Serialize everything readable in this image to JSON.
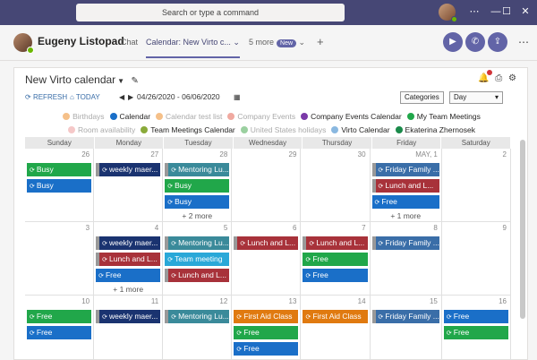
{
  "window": {
    "search_placeholder": "Search or type a command",
    "controls": [
      "⋯",
      "—",
      "☐",
      "✕"
    ]
  },
  "header": {
    "user_name": "Eugeny Listopad",
    "tabs": [
      {
        "label": "Chat"
      },
      {
        "label": "Calendar: New Virto c... ⌄"
      },
      {
        "label": "5 more"
      }
    ],
    "new_badge": "New",
    "add_tab": "+"
  },
  "calendar": {
    "title": "New Virto calendar",
    "toolbar": {
      "refresh": "REFRESH",
      "today": "TODAY",
      "date_range": "04/26/2020 - 06/06/2020",
      "categories_label": "Categories",
      "view_select": "Day"
    },
    "legend_row1": [
      {
        "label": "Birthdays",
        "color": "#f5c089",
        "faded": true
      },
      {
        "label": "Calendar",
        "color": "#1a6fc8",
        "faded": false
      },
      {
        "label": "Calendar test list",
        "color": "#f5c089",
        "faded": true
      },
      {
        "label": "Company Events",
        "color": "#f0a9a0",
        "faded": true
      },
      {
        "label": "Company Events Calendar",
        "color": "#7a3aa8",
        "faded": false
      },
      {
        "label": "My Team Meetings",
        "color": "#21a74a",
        "faded": false
      }
    ],
    "legend_row2": [
      {
        "label": "Room availability",
        "color": "#f5c8c8",
        "faded": true
      },
      {
        "label": "Team Meetings Calendar",
        "color": "#8aaa3a",
        "faded": false
      },
      {
        "label": "United States holidays",
        "color": "#9bd0a0",
        "faded": true
      },
      {
        "label": "Virto Calendar",
        "color": "#8ab8e0",
        "faded": false
      },
      {
        "label": "Ekaterina Zhernosek",
        "color": "#1a8a4a",
        "faded": false
      }
    ],
    "weekdays": [
      "Sunday",
      "Monday",
      "Tuesday",
      "Wednesday",
      "Thursday",
      "Friday",
      "Saturday"
    ],
    "weeks": [
      {
        "days": [
          {
            "num": "26",
            "events": [
              {
                "t": "Busy",
                "c": "#21a74a"
              },
              {
                "t": "Busy",
                "c": "#1a6fc8"
              }
            ]
          },
          {
            "num": "27",
            "events": [
              {
                "t": "weekly maer...",
                "c": "#1a3370",
                "cont": true
              }
            ]
          },
          {
            "num": "28",
            "events": [
              {
                "t": "Mentoring Lu...",
                "c": "#3a8a9a",
                "cont": true
              },
              {
                "t": "Busy",
                "c": "#21a74a"
              },
              {
                "t": "Busy",
                "c": "#1a6fc8"
              }
            ],
            "more": "+ 2 more"
          },
          {
            "num": "29",
            "events": []
          },
          {
            "num": "30",
            "events": []
          },
          {
            "num": "MAY, 1",
            "events": [
              {
                "t": "Friday Family ...",
                "c": "#3a6ea8",
                "cont": true
              },
              {
                "t": "Lunch and L...",
                "c": "#a8323a",
                "cont": true
              },
              {
                "t": "Free",
                "c": "#1a6fc8"
              }
            ],
            "more": "+ 1 more"
          },
          {
            "num": "2",
            "events": []
          }
        ]
      },
      {
        "days": [
          {
            "num": "3",
            "events": []
          },
          {
            "num": "4",
            "events": [
              {
                "t": "weekly maer...",
                "c": "#1a3370",
                "cont": true
              },
              {
                "t": "Lunch and L...",
                "c": "#a8323a",
                "cont": true
              },
              {
                "t": "Free",
                "c": "#1a6fc8"
              }
            ],
            "more": "+ 1 more"
          },
          {
            "num": "5",
            "events": [
              {
                "t": "Mentoring Lu...",
                "c": "#3a8a9a",
                "cont": true
              },
              {
                "t": "Team meeting",
                "c": "#2aa8d8"
              },
              {
                "t": "Lunch and L...",
                "c": "#a8323a",
                "cont": true
              }
            ]
          },
          {
            "num": "6",
            "events": [
              {
                "t": "Lunch and L...",
                "c": "#a8323a",
                "cont": true
              }
            ]
          },
          {
            "num": "7",
            "events": [
              {
                "t": "Lunch and L...",
                "c": "#a8323a",
                "cont": true
              },
              {
                "t": "Free",
                "c": "#21a74a"
              },
              {
                "t": "Free",
                "c": "#1a6fc8"
              }
            ]
          },
          {
            "num": "8",
            "events": [
              {
                "t": "Friday Family ...",
                "c": "#3a6ea8",
                "cont": true
              }
            ]
          },
          {
            "num": "9",
            "events": []
          }
        ]
      },
      {
        "days": [
          {
            "num": "10",
            "events": [
              {
                "t": "Free",
                "c": "#21a74a"
              },
              {
                "t": "Free",
                "c": "#1a6fc8"
              }
            ]
          },
          {
            "num": "11",
            "events": [
              {
                "t": "weekly maer...",
                "c": "#1a3370",
                "cont": true
              }
            ]
          },
          {
            "num": "12",
            "events": [
              {
                "t": "Mentoring Lu...",
                "c": "#3a8a9a",
                "cont": true
              }
            ]
          },
          {
            "num": "13",
            "events": [
              {
                "t": "First Aid Class",
                "c": "#e07a10"
              },
              {
                "t": "Free",
                "c": "#21a74a"
              },
              {
                "t": "Free",
                "c": "#1a6fc8"
              }
            ]
          },
          {
            "num": "14",
            "events": [
              {
                "t": "First Aid Class",
                "c": "#e07a10"
              }
            ]
          },
          {
            "num": "15",
            "events": [
              {
                "t": "Friday Family ...",
                "c": "#3a6ea8",
                "cont": true
              }
            ]
          },
          {
            "num": "16",
            "events": [
              {
                "t": "Free",
                "c": "#1a6fc8"
              },
              {
                "t": "Free",
                "c": "#21a74a"
              }
            ]
          }
        ]
      }
    ]
  }
}
